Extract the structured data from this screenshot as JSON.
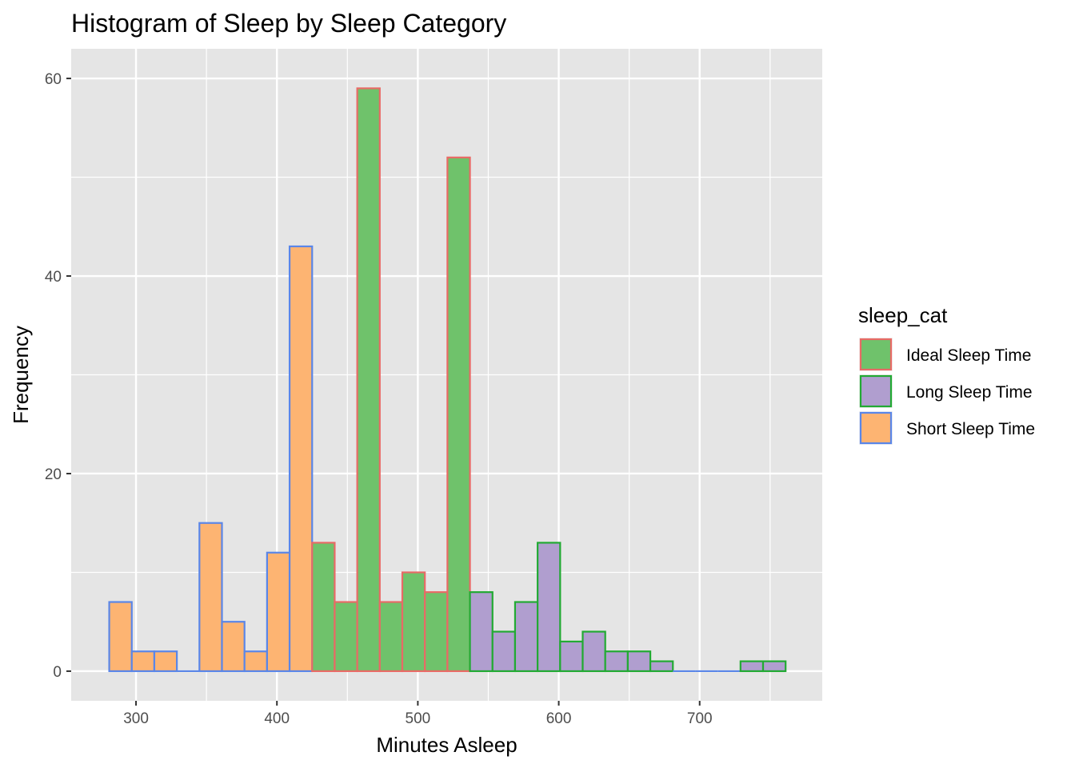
{
  "chart_data": {
    "type": "bar",
    "subtype": "histogram",
    "title": "Histogram of Sleep by Sleep Category",
    "xlabel": "Minutes Asleep",
    "ylabel": "Frequency",
    "xlim": [
      254,
      787
    ],
    "ylim": [
      -3,
      63
    ],
    "x_ticks": [
      300,
      400,
      500,
      600,
      700
    ],
    "y_ticks": [
      0,
      20,
      40,
      60
    ],
    "grid": true,
    "legend": {
      "title": "sleep_cat",
      "placement": "right",
      "entries": [
        {
          "label": "Ideal Sleep Time",
          "fill": "#6fc26b",
          "outline": "#e86a66"
        },
        {
          "label": "Long Sleep Time",
          "fill": "#b09ecf",
          "outline": "#22aa33"
        },
        {
          "label": "Short Sleep Time",
          "fill": "#fdb472",
          "outline": "#5a86e8"
        }
      ]
    },
    "bins": [
      {
        "x0": 281,
        "x1": 297,
        "count": 7,
        "cat": "Short Sleep Time"
      },
      {
        "x0": 297,
        "x1": 313,
        "count": 2,
        "cat": "Short Sleep Time"
      },
      {
        "x0": 313,
        "x1": 329,
        "count": 2,
        "cat": "Short Sleep Time"
      },
      {
        "x0": 329,
        "x1": 345,
        "count": 0,
        "cat": "Short Sleep Time"
      },
      {
        "x0": 345,
        "x1": 361,
        "count": 15,
        "cat": "Short Sleep Time"
      },
      {
        "x0": 361,
        "x1": 377,
        "count": 5,
        "cat": "Short Sleep Time"
      },
      {
        "x0": 377,
        "x1": 393,
        "count": 2,
        "cat": "Short Sleep Time"
      },
      {
        "x0": 393,
        "x1": 409,
        "count": 12,
        "cat": "Short Sleep Time"
      },
      {
        "x0": 409,
        "x1": 425,
        "count": 43,
        "cat": "Short Sleep Time"
      },
      {
        "x0": 425,
        "x1": 441,
        "count": 13,
        "cat": "Ideal Sleep Time"
      },
      {
        "x0": 441,
        "x1": 457,
        "count": 7,
        "cat": "Ideal Sleep Time"
      },
      {
        "x0": 457,
        "x1": 473,
        "count": 59,
        "cat": "Ideal Sleep Time"
      },
      {
        "x0": 473,
        "x1": 489,
        "count": 7,
        "cat": "Ideal Sleep Time"
      },
      {
        "x0": 489,
        "x1": 505,
        "count": 10,
        "cat": "Ideal Sleep Time"
      },
      {
        "x0": 505,
        "x1": 521,
        "count": 8,
        "cat": "Ideal Sleep Time"
      },
      {
        "x0": 521,
        "x1": 537,
        "count": 52,
        "cat": "Ideal Sleep Time"
      },
      {
        "x0": 537,
        "x1": 553,
        "count": 8,
        "cat": "Long Sleep Time"
      },
      {
        "x0": 553,
        "x1": 569,
        "count": 4,
        "cat": "Long Sleep Time"
      },
      {
        "x0": 569,
        "x1": 585,
        "count": 7,
        "cat": "Long Sleep Time"
      },
      {
        "x0": 585,
        "x1": 601,
        "count": 13,
        "cat": "Long Sleep Time"
      },
      {
        "x0": 601,
        "x1": 617,
        "count": 3,
        "cat": "Long Sleep Time"
      },
      {
        "x0": 617,
        "x1": 633,
        "count": 4,
        "cat": "Long Sleep Time"
      },
      {
        "x0": 633,
        "x1": 649,
        "count": 2,
        "cat": "Long Sleep Time"
      },
      {
        "x0": 649,
        "x1": 665,
        "count": 2,
        "cat": "Long Sleep Time"
      },
      {
        "x0": 665,
        "x1": 681,
        "count": 1,
        "cat": "Long Sleep Time"
      },
      {
        "x0": 681,
        "x1": 697,
        "count": 0,
        "cat": "Long Sleep Time"
      },
      {
        "x0": 697,
        "x1": 713,
        "count": 0,
        "cat": "Long Sleep Time"
      },
      {
        "x0": 713,
        "x1": 729,
        "count": 0,
        "cat": "Long Sleep Time"
      },
      {
        "x0": 729,
        "x1": 745,
        "count": 1,
        "cat": "Long Sleep Time"
      },
      {
        "x0": 745,
        "x1": 761,
        "count": 1,
        "cat": "Long Sleep Time"
      }
    ],
    "empty_bin_outline": "#5a86e8",
    "panel_background": "#e5e5e5",
    "grid_color": "#ffffff"
  }
}
